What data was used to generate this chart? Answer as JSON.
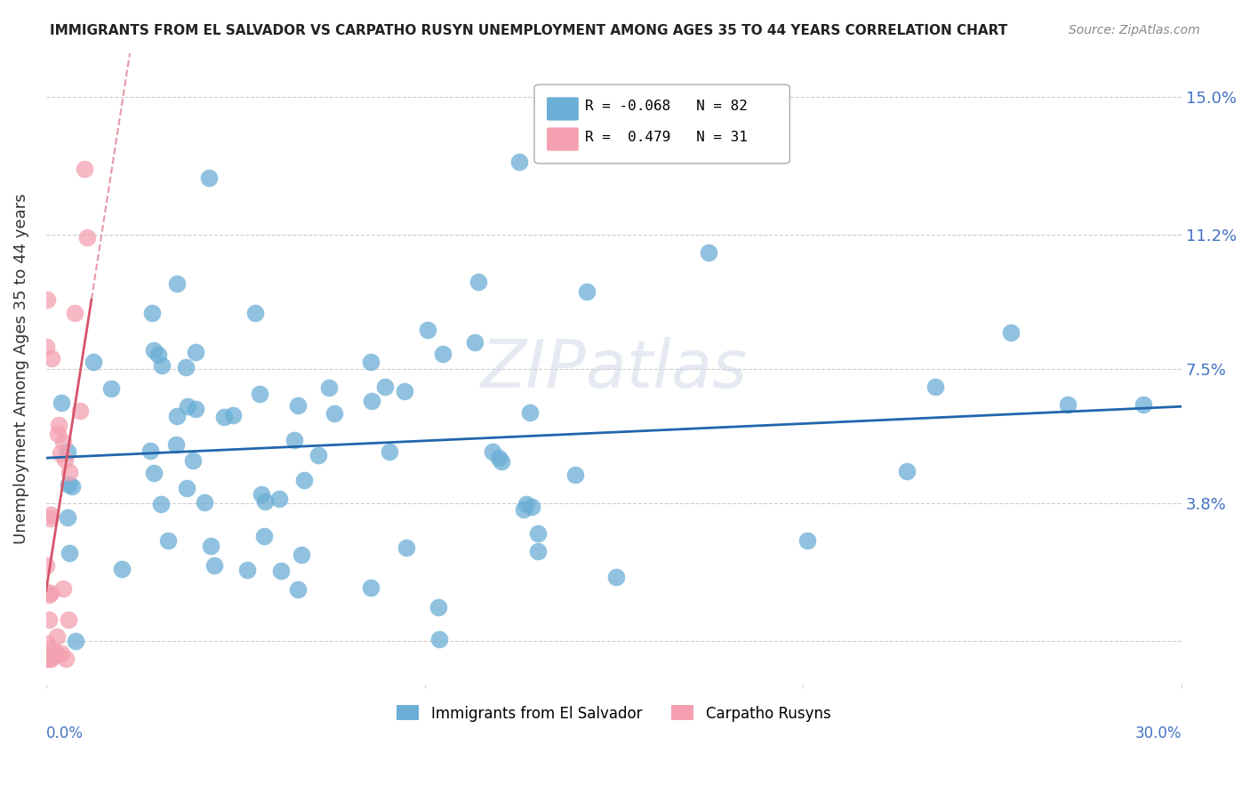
{
  "title": "IMMIGRANTS FROM EL SALVADOR VS CARPATHO RUSYN UNEMPLOYMENT AMONG AGES 35 TO 44 YEARS CORRELATION CHART",
  "source": "Source: ZipAtlas.com",
  "ylabel": "Unemployment Among Ages 35 to 44 years",
  "yticks": [
    0.0,
    0.038,
    0.075,
    0.112,
    0.15
  ],
  "ytick_labels": [
    "",
    "3.8%",
    "7.5%",
    "11.2%",
    "15.0%"
  ],
  "xlim": [
    0.0,
    0.3
  ],
  "ylim": [
    -0.012,
    0.162
  ],
  "color_blue": "#6baed6",
  "color_blue_line": "#2166ac",
  "color_pink": "#f4a0b0",
  "color_pink_line": "#d6546a",
  "color_title": "#222222",
  "color_source": "#888888",
  "color_ytick": "#4472c4",
  "watermark": "ZIPatlas"
}
